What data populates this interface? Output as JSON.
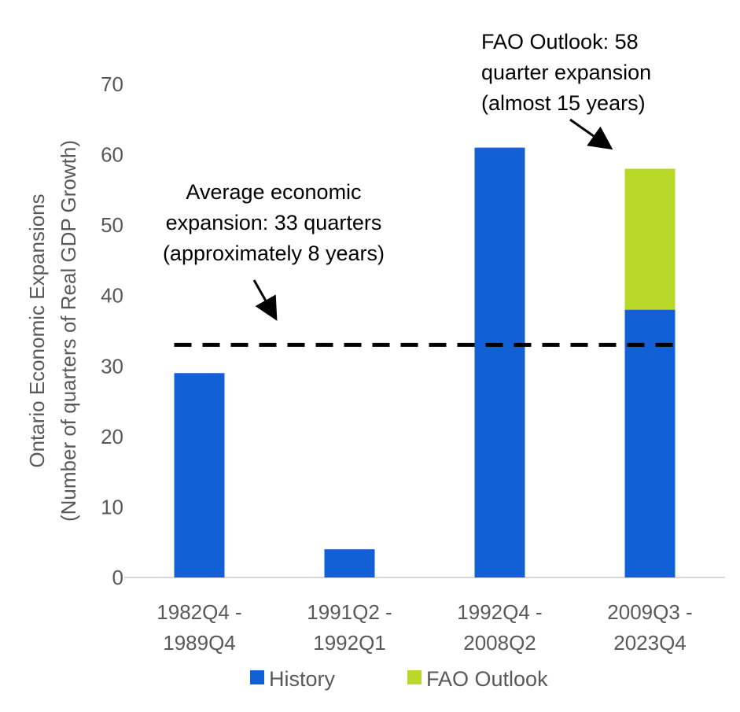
{
  "chart_data": {
    "type": "bar",
    "stacked": true,
    "categories": [
      [
        "1982Q4 -",
        "1989Q4"
      ],
      [
        "1991Q2 -",
        "1992Q1"
      ],
      [
        "1992Q4 -",
        "2008Q2"
      ],
      [
        "2009Q3 -",
        "2023Q4"
      ]
    ],
    "series": [
      {
        "name": "History",
        "color": "#1260D6",
        "values": [
          29,
          4,
          61,
          38
        ]
      },
      {
        "name": "FAO Outlook",
        "color": "#B8D927",
        "values": [
          0,
          0,
          0,
          20
        ]
      }
    ],
    "ylabel": [
      "Ontario  Economic Expansions",
      "(Number of quarters of Real GDP Growth)"
    ],
    "ylim": [
      0,
      70
    ],
    "yticks": [
      0,
      10,
      20,
      30,
      40,
      50,
      60,
      70
    ],
    "grid": false,
    "legend_position": "bottom",
    "reference_line": {
      "value": 33,
      "style": "dashed",
      "color": "#000000"
    },
    "annotations": [
      {
        "lines": [
          "Average economic",
          "expansion: 33 quarters",
          "(approximately 8 years)"
        ]
      },
      {
        "lines": [
          "FAO Outlook: 58",
          "quarter expansion",
          "(almost 15 years)"
        ]
      }
    ]
  }
}
